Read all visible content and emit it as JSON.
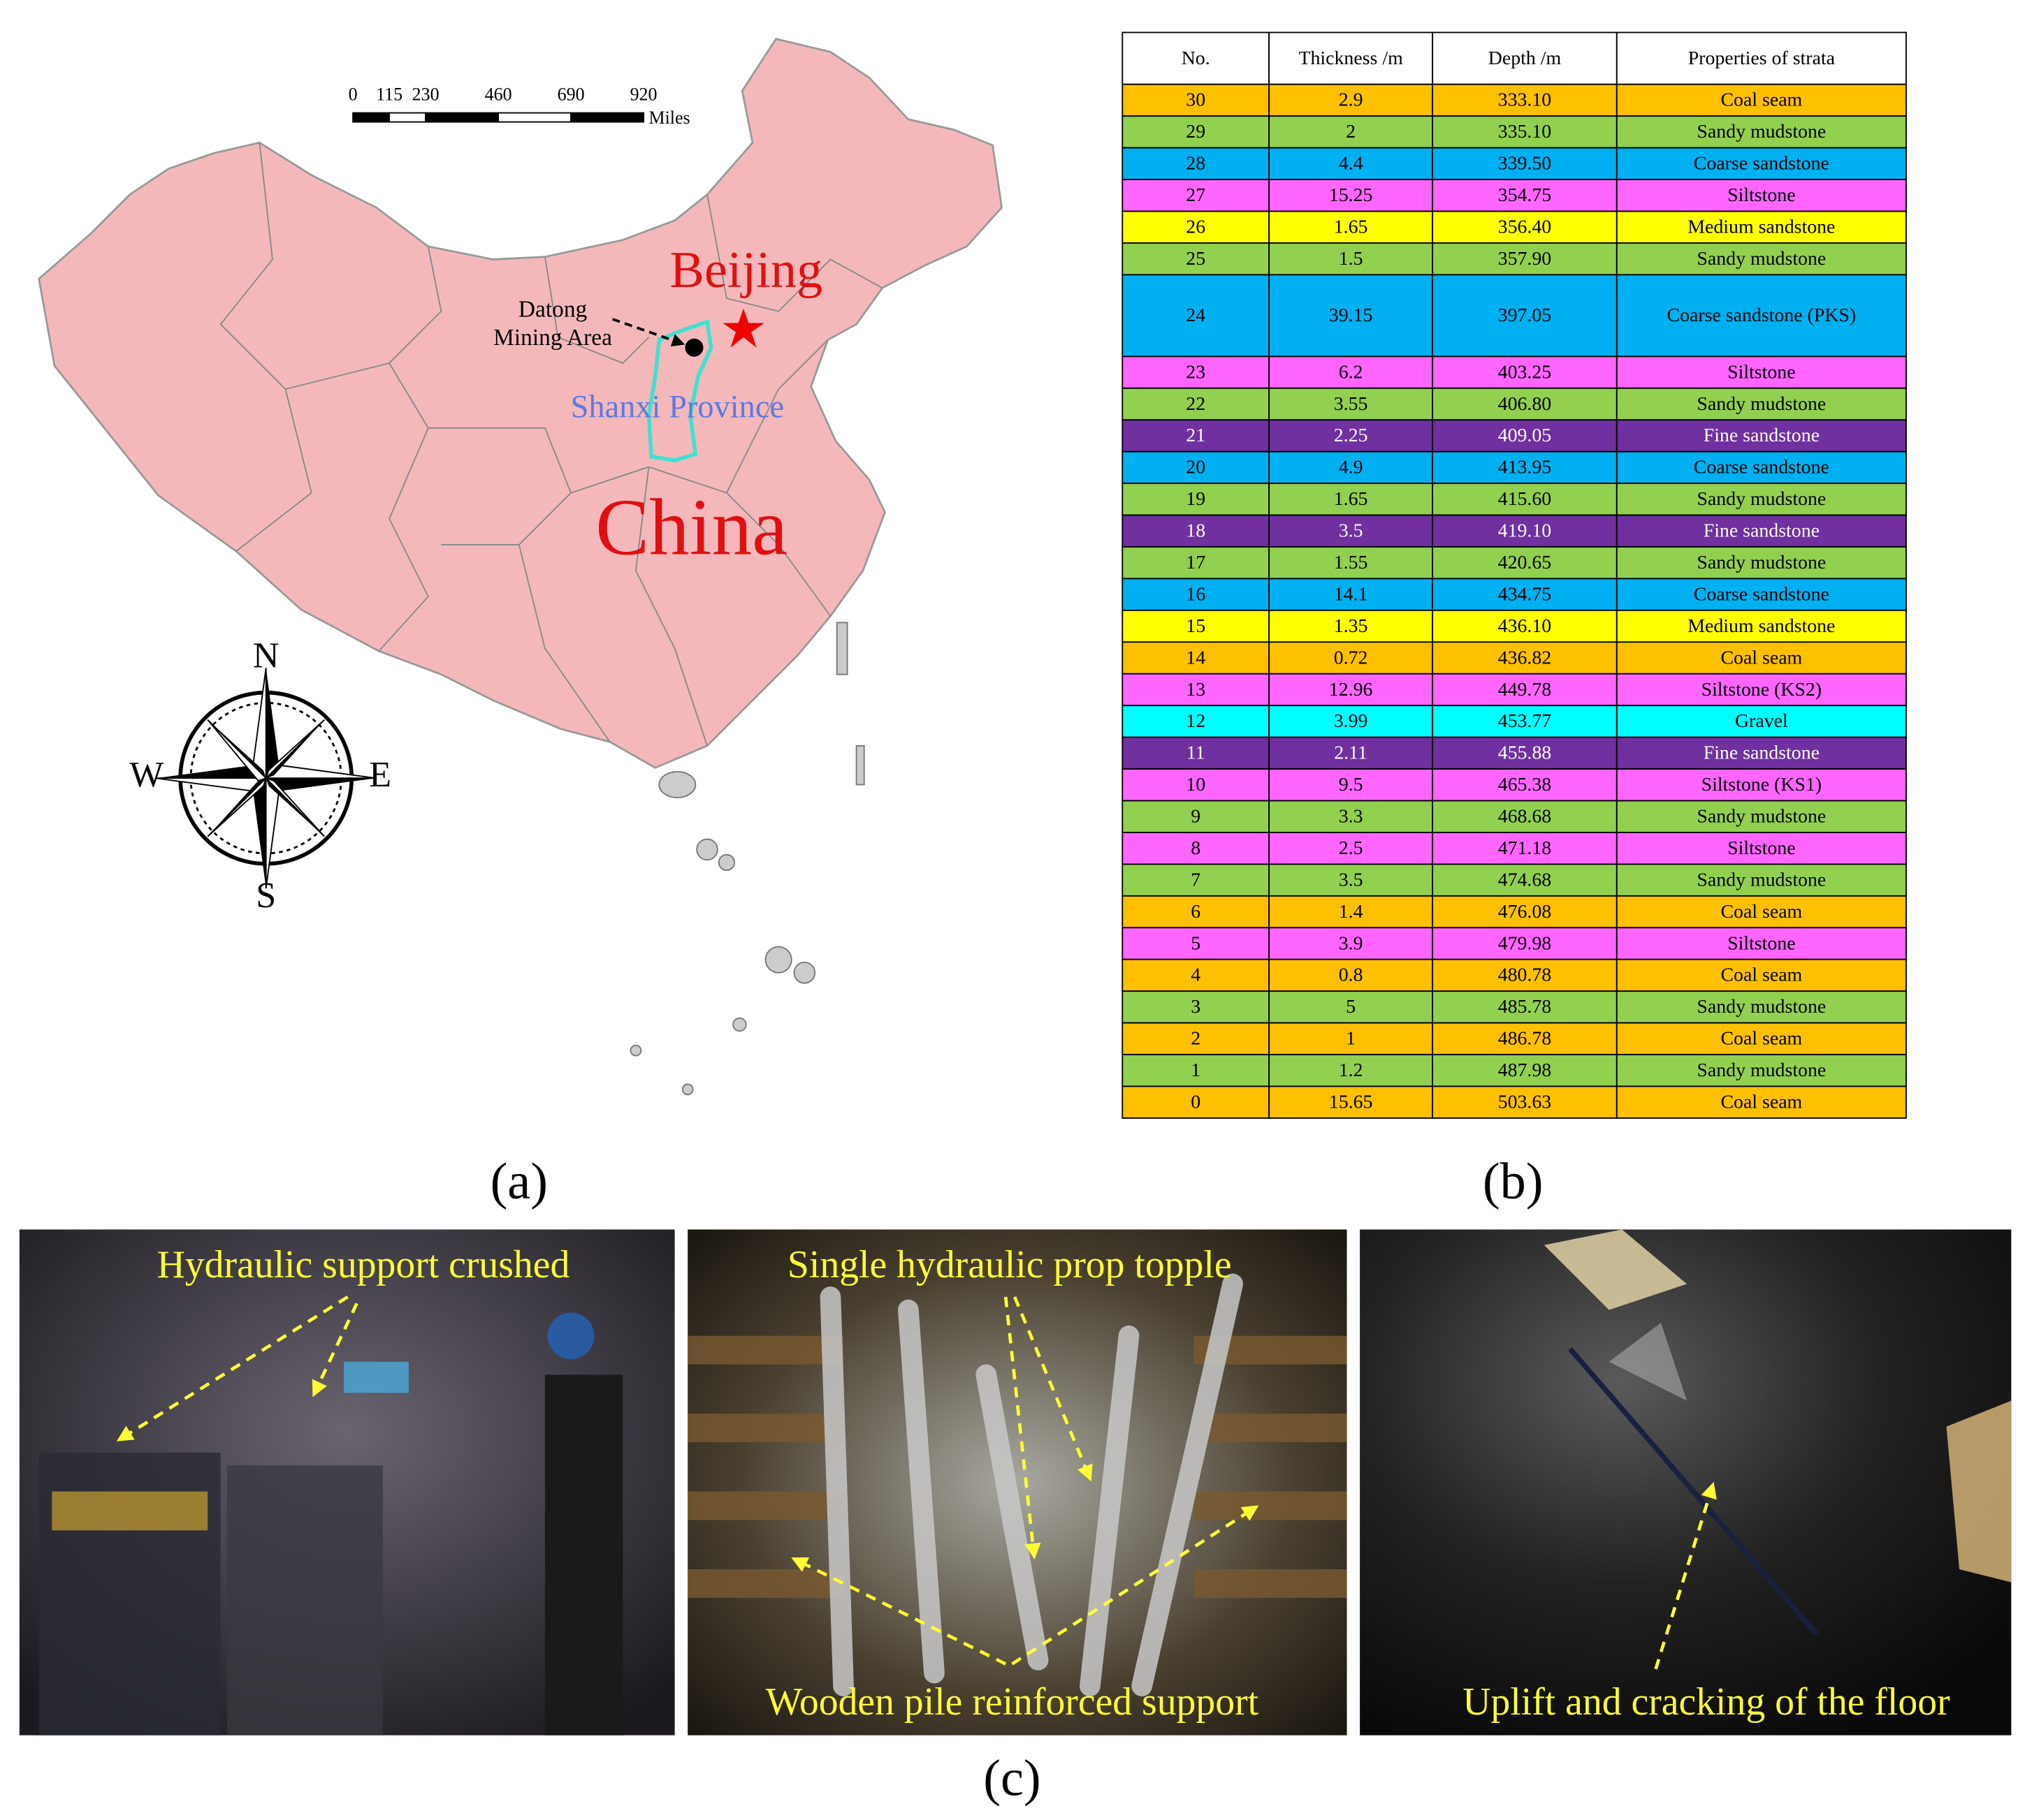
{
  "map": {
    "scale_labels": [
      "0",
      "115",
      "230",
      "460",
      "690",
      "920"
    ],
    "scale_unit": "Miles",
    "compass": {
      "n": "N",
      "s": "S",
      "w": "W",
      "e": "E"
    },
    "labels": {
      "beijing": "Beijing",
      "datong_line1": "Datong",
      "datong_line2": "Mining Area",
      "province": "Shanxi Province",
      "country": "China"
    }
  },
  "table": {
    "header": [
      "No.",
      "Thickness /m",
      "Depth /m",
      "Properties of strata"
    ],
    "rows": [
      [
        "30",
        "2.9",
        "333.10",
        "Coal seam"
      ],
      [
        "29",
        "2",
        "335.10",
        "Sandy mudstone"
      ],
      [
        "28",
        "4.4",
        "339.50",
        "Coarse sandstone"
      ],
      [
        "27",
        "15.25",
        "354.75",
        "Siltstone"
      ],
      [
        "26",
        "1.65",
        "356.40",
        "Medium sandstone"
      ],
      [
        "25",
        "1.5",
        "357.90",
        "Sandy mudstone"
      ],
      [
        "24",
        "39.15",
        "397.05",
        "Coarse sandstone (PKS)"
      ],
      [
        "23",
        "6.2",
        "403.25",
        "Siltstone"
      ],
      [
        "22",
        "3.55",
        "406.80",
        "Sandy mudstone"
      ],
      [
        "21",
        "2.25",
        "409.05",
        "Fine sandstone"
      ],
      [
        "20",
        "4.9",
        "413.95",
        "Coarse sandstone"
      ],
      [
        "19",
        "1.65",
        "415.60",
        "Sandy mudstone"
      ],
      [
        "18",
        "3.5",
        "419.10",
        "Fine sandstone"
      ],
      [
        "17",
        "1.55",
        "420.65",
        "Sandy mudstone"
      ],
      [
        "16",
        "14.1",
        "434.75",
        "Coarse sandstone"
      ],
      [
        "15",
        "1.35",
        "436.10",
        "Medium sandstone"
      ],
      [
        "14",
        "0.72",
        "436.82",
        "Coal seam"
      ],
      [
        "13",
        "12.96",
        "449.78",
        "Siltstone (KS2)"
      ],
      [
        "12",
        "3.99",
        "453.77",
        "Gravel"
      ],
      [
        "11",
        "2.11",
        "455.88",
        "Fine sandstone"
      ],
      [
        "10",
        "9.5",
        "465.38",
        "Siltstone (KS1)"
      ],
      [
        "9",
        "3.3",
        "468.68",
        "Sandy mudstone"
      ],
      [
        "8",
        "2.5",
        "471.18",
        "Siltstone"
      ],
      [
        "7",
        "3.5",
        "474.68",
        "Sandy mudstone"
      ],
      [
        "6",
        "1.4",
        "476.08",
        "Coal seam"
      ],
      [
        "5",
        "3.9",
        "479.98",
        "Siltstone"
      ],
      [
        "4",
        "0.8",
        "480.78",
        "Coal seam"
      ],
      [
        "3",
        "5",
        "485.78",
        "Sandy mudstone"
      ],
      [
        "2",
        "1",
        "486.78",
        "Coal seam"
      ],
      [
        "1",
        "1.2",
        "487.98",
        "Sandy mudstone"
      ],
      [
        "0",
        "15.65",
        "503.63",
        "Coal seam"
      ]
    ],
    "row_colors": [
      "#ffc000",
      "#92d050",
      "#00b0f0",
      "#ff66ff",
      "#ffff00",
      "#92d050",
      "#00b0f0",
      "#ff66ff",
      "#92d050",
      "#7030a0",
      "#00b0f0",
      "#92d050",
      "#7030a0",
      "#92d050",
      "#00b0f0",
      "#ffff00",
      "#ffc000",
      "#ff66ff",
      "#00ffff",
      "#7030a0",
      "#ff66ff",
      "#92d050",
      "#ff66ff",
      "#92d050",
      "#ffc000",
      "#ff66ff",
      "#ffc000",
      "#92d050",
      "#ffc000",
      "#92d050",
      "#ffc000"
    ]
  },
  "photos": [
    {
      "captions": [
        "Hydraulic support crushed"
      ]
    },
    {
      "captions": [
        "Single hydraulic prop topple",
        "Wooden pile reinforced support"
      ]
    },
    {
      "captions": [
        "Uplift and cracking of the floor"
      ]
    }
  ],
  "panel_labels": [
    "(a)",
    "(b)",
    "(c)"
  ]
}
